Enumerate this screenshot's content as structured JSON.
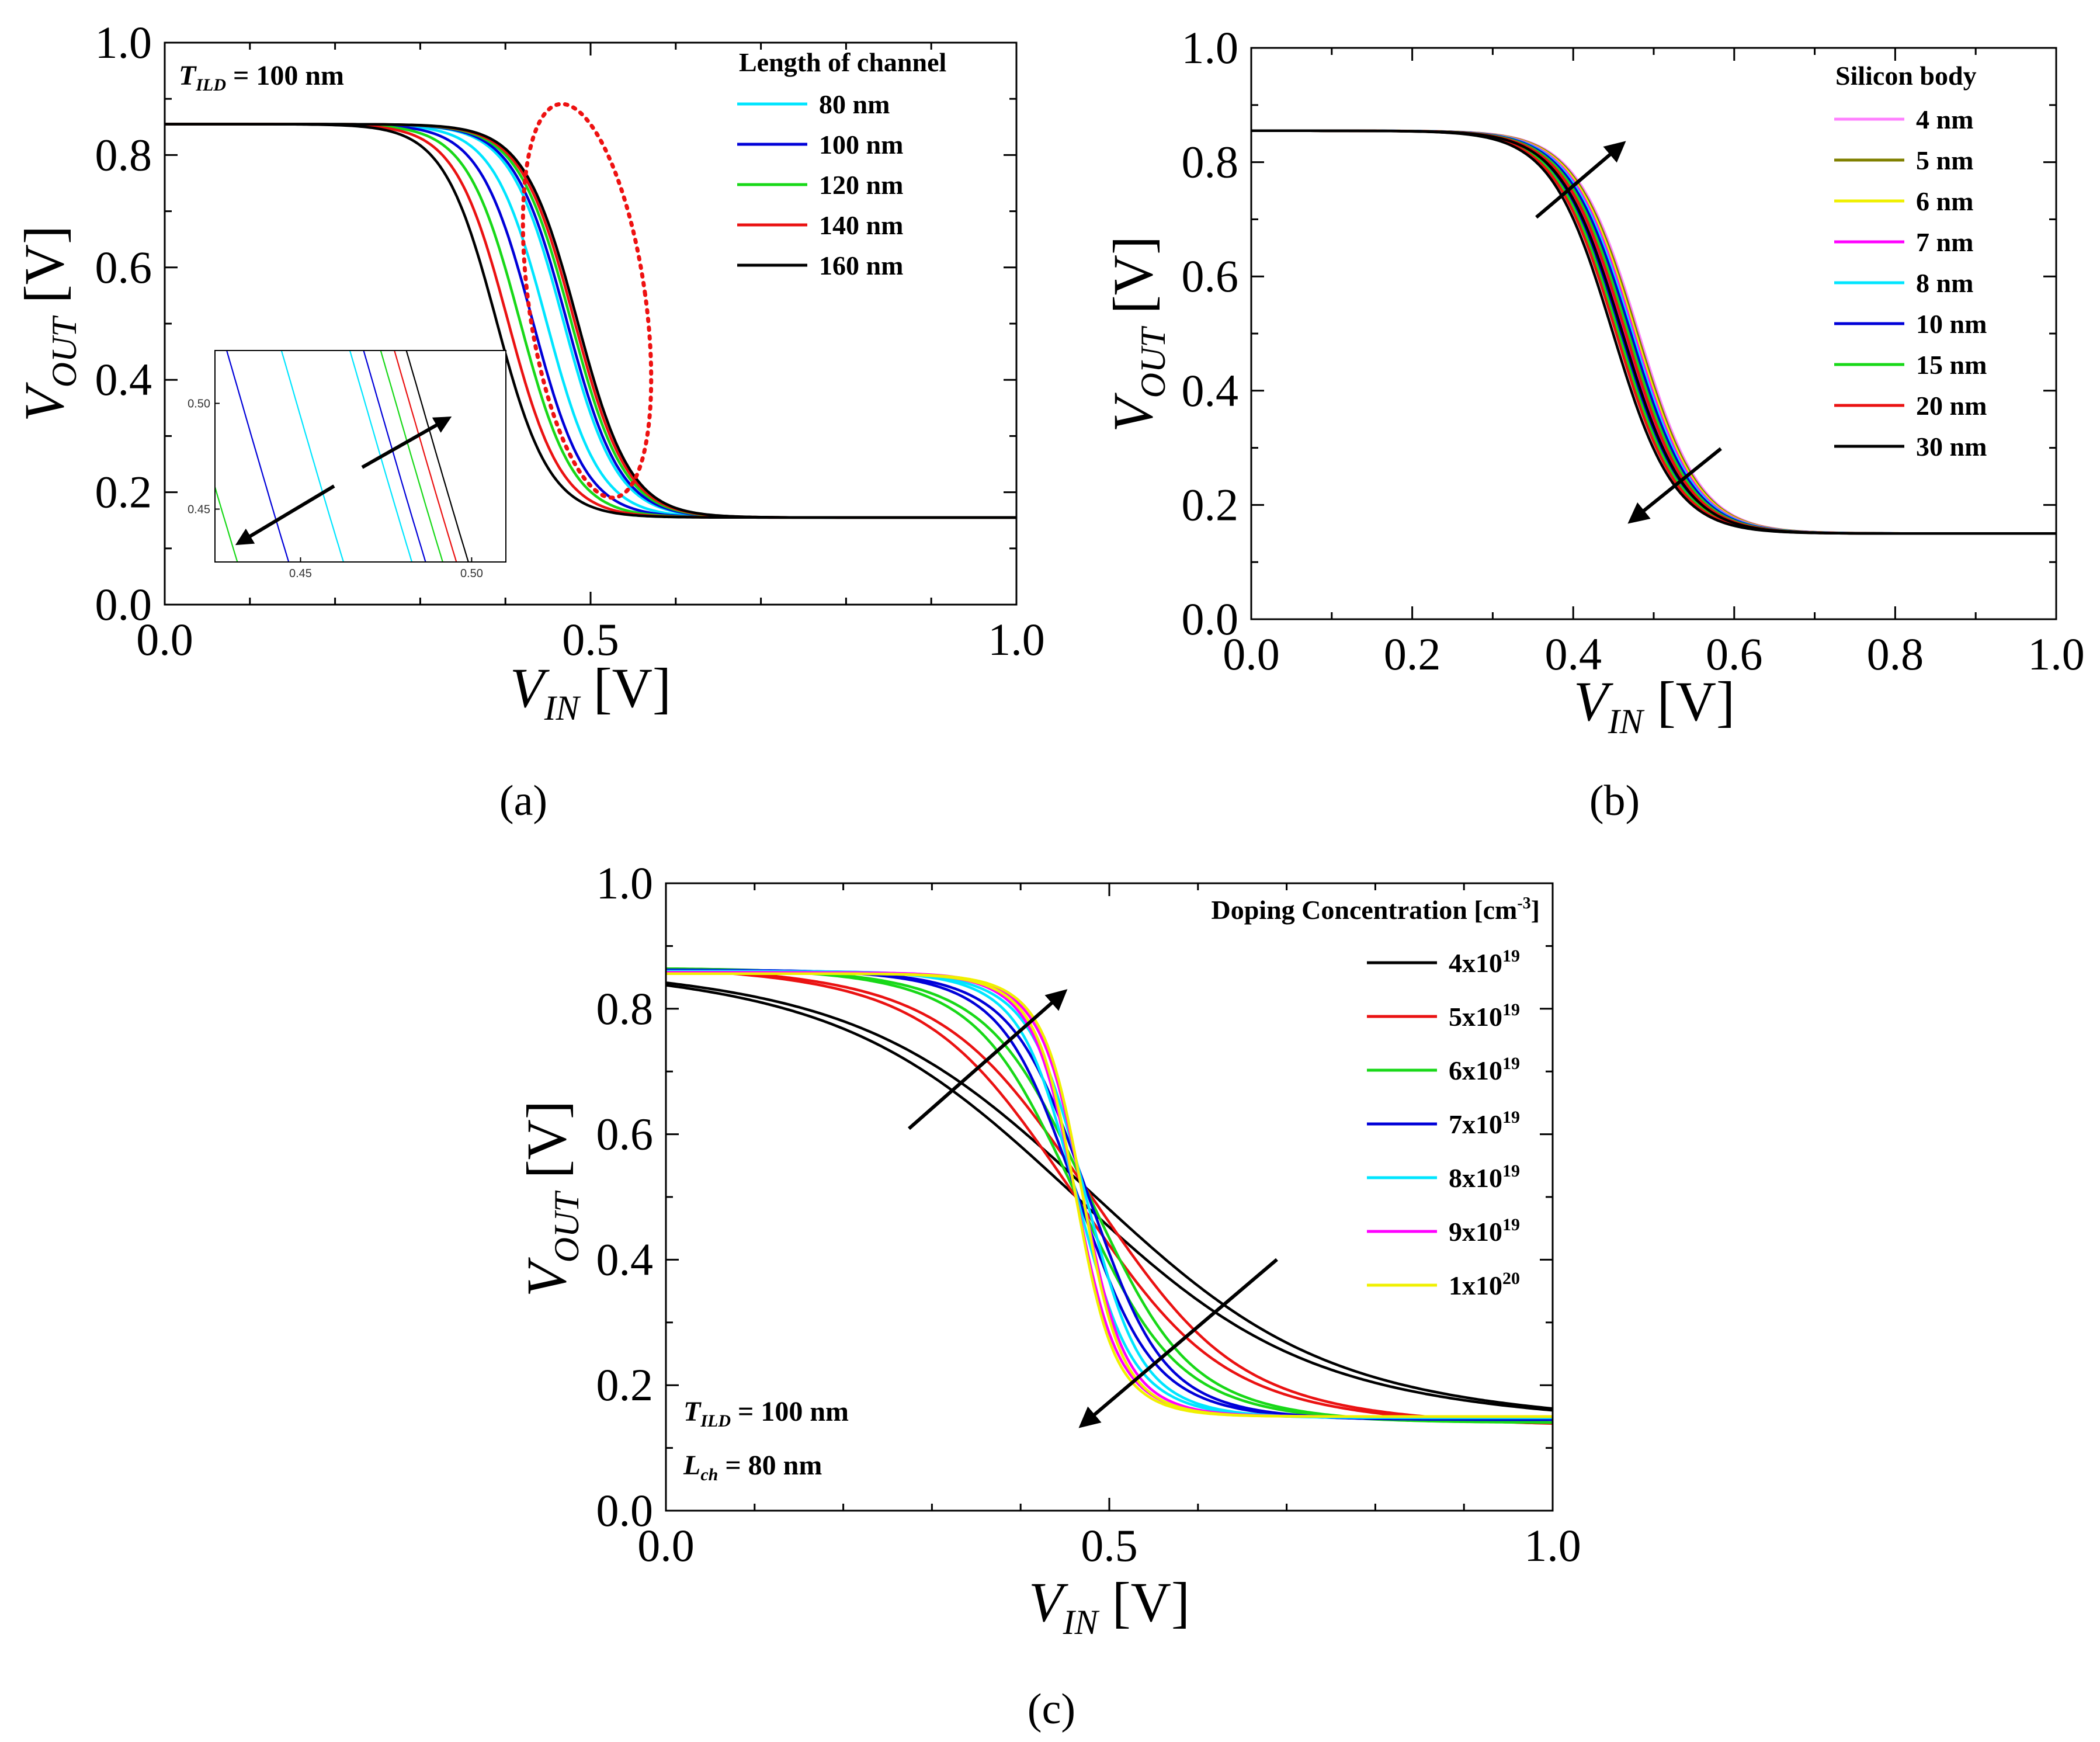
{
  "colors": {
    "cyan": "#00e5ff",
    "blue": "#0000d8",
    "green": "#18d818",
    "red": "#ea1212",
    "black": "#000000",
    "pink": "#ff80ff",
    "olive": "#808000",
    "yellow": "#f0f000",
    "magenta": "#ff00ff",
    "ellipse": "#ee1111"
  },
  "chart_data": [
    {
      "id": "a",
      "type": "line",
      "panel_label": "(a)",
      "xlabel": "V_IN [V]",
      "xlabel_main": "V",
      "xlabel_sub": "IN",
      "xlabel_unit": " [V]",
      "ylabel": "V_OUT [V]",
      "ylabel_main": "V",
      "ylabel_sub": "OUT",
      "ylabel_unit": " [V]",
      "xlim": [
        0,
        1
      ],
      "ylim": [
        0,
        1
      ],
      "xticks": [
        "0.0",
        "0.5",
        "1.0"
      ],
      "xtick_values": [
        0,
        0.5,
        1.0
      ],
      "yticks": [
        "0.0",
        "0.2",
        "0.4",
        "0.6",
        "0.8",
        "1.0"
      ],
      "ytick_values": [
        0,
        0.2,
        0.4,
        0.6,
        0.8,
        1.0
      ],
      "legend_title": "Length of channel",
      "legend_location": "top-right",
      "annotation_main": "T",
      "annotation_sub": "ILD",
      "annotation_text": " = 100 nm",
      "series": [
        {
          "name": "80 nm",
          "color": "cyan",
          "vm": 0.458,
          "k": 32,
          "hyst": 0.02,
          "vh": 0.855,
          "vl": 0.155
        },
        {
          "name": "100 nm",
          "color": "blue",
          "vm": 0.452,
          "k": 32,
          "hyst": 0.04,
          "vh": 0.855,
          "vl": 0.155
        },
        {
          "name": "120 nm",
          "color": "green",
          "vm": 0.447,
          "k": 32,
          "hyst": 0.06,
          "vh": 0.855,
          "vl": 0.155
        },
        {
          "name": "140 nm",
          "color": "red",
          "vm": 0.442,
          "k": 32,
          "hyst": 0.078,
          "vh": 0.855,
          "vl": 0.155
        },
        {
          "name": "160 nm",
          "color": "black",
          "vm": 0.437,
          "k": 32,
          "hyst": 0.095,
          "vh": 0.855,
          "vl": 0.155
        }
      ],
      "inset": {
        "xlim": [
          0.425,
          0.51
        ],
        "ylim": [
          0.425,
          0.525
        ],
        "xticks": [
          "0.45",
          "0.50"
        ],
        "xtick_values": [
          0.45,
          0.5
        ],
        "yticks": [
          "0.45",
          "0.50"
        ],
        "ytick_values": [
          0.45,
          0.5
        ]
      }
    },
    {
      "id": "b",
      "type": "line",
      "panel_label": "(b)",
      "xlabel": "V_IN [V]",
      "xlabel_main": "V",
      "xlabel_sub": "IN",
      "xlabel_unit": " [V]",
      "ylabel": "V_OUT [V]",
      "ylabel_main": "V",
      "ylabel_sub": "OUT",
      "ylabel_unit": " [V]",
      "xlim": [
        0,
        1
      ],
      "ylim": [
        0,
        1
      ],
      "xticks": [
        "0.0",
        "0.2",
        "0.4",
        "0.6",
        "0.8",
        "1.0"
      ],
      "xtick_values": [
        0,
        0.2,
        0.4,
        0.6,
        0.8,
        1.0
      ],
      "yticks": [
        "0.0",
        "0.2",
        "0.4",
        "0.6",
        "0.8",
        "1.0"
      ],
      "ytick_values": [
        0,
        0.2,
        0.4,
        0.6,
        0.8,
        1.0
      ],
      "legend_title": "Silicon body",
      "legend_location": "top-right",
      "series": [
        {
          "name": "4 nm",
          "color": "pink",
          "vm": 0.475,
          "k": 26,
          "hyst": 0.012,
          "vh": 0.855,
          "vl": 0.15
        },
        {
          "name": "5 nm",
          "color": "olive",
          "vm": 0.473,
          "k": 26,
          "hyst": 0.012,
          "vh": 0.855,
          "vl": 0.15
        },
        {
          "name": "6 nm",
          "color": "yellow",
          "vm": 0.471,
          "k": 26,
          "hyst": 0.012,
          "vh": 0.855,
          "vl": 0.15
        },
        {
          "name": "7 nm",
          "color": "magenta",
          "vm": 0.469,
          "k": 26,
          "hyst": 0.012,
          "vh": 0.855,
          "vl": 0.15
        },
        {
          "name": "8 nm",
          "color": "cyan",
          "vm": 0.467,
          "k": 26,
          "hyst": 0.012,
          "vh": 0.855,
          "vl": 0.15
        },
        {
          "name": "10 nm",
          "color": "blue",
          "vm": 0.465,
          "k": 26,
          "hyst": 0.012,
          "vh": 0.855,
          "vl": 0.15
        },
        {
          "name": "15 nm",
          "color": "green",
          "vm": 0.462,
          "k": 26,
          "hyst": 0.012,
          "vh": 0.855,
          "vl": 0.15
        },
        {
          "name": "20 nm",
          "color": "red",
          "vm": 0.459,
          "k": 26,
          "hyst": 0.012,
          "vh": 0.855,
          "vl": 0.15
        },
        {
          "name": "30 nm",
          "color": "black",
          "vm": 0.455,
          "k": 26,
          "hyst": 0.012,
          "vh": 0.855,
          "vl": 0.15
        }
      ]
    },
    {
      "id": "c",
      "type": "line",
      "panel_label": "(c)",
      "xlabel": "V_IN [V]",
      "xlabel_main": "V",
      "xlabel_sub": "IN",
      "xlabel_unit": " [V]",
      "ylabel": "V_OUT [V]",
      "ylabel_main": "V",
      "ylabel_sub": "OUT",
      "ylabel_unit": " [V]",
      "xlim": [
        0,
        1
      ],
      "ylim": [
        0,
        1
      ],
      "xticks": [
        "0.0",
        "0.5",
        "1.0"
      ],
      "xtick_values": [
        0,
        0.5,
        1.0
      ],
      "yticks": [
        "0.0",
        "0.2",
        "0.4",
        "0.6",
        "0.8",
        "1.0"
      ],
      "ytick_values": [
        0,
        0.2,
        0.4,
        0.6,
        0.8,
        1.0
      ],
      "legend_title_main": "Doping Concentration [cm",
      "legend_title_sup": "-3",
      "legend_title_end": "]",
      "legend_location": "top-right",
      "annotation1_main": "T",
      "annotation1_sub": "ILD",
      "annotation1_text": " = 100 nm",
      "annotation2_main": "L",
      "annotation2_sub": "ch",
      "annotation2_text": " = 80 nm",
      "series": [
        {
          "name": "4x10^19",
          "label_base": "4x10",
          "label_exp": "19",
          "color": "black",
          "vm": 0.47,
          "k": 4.8,
          "plateau": 0.08,
          "hyst": 0.022,
          "vh": 0.875,
          "vl": 0.135
        },
        {
          "name": "5x10^19",
          "label_base": "5x10",
          "label_exp": "19",
          "color": "red",
          "vm": 0.47,
          "k": 8.2,
          "plateau": 0.06,
          "hyst": 0.018,
          "vh": 0.87,
          "vl": 0.135
        },
        {
          "name": "6x10^19",
          "label_base": "6x10",
          "label_exp": "19",
          "color": "green",
          "vm": 0.47,
          "k": 12,
          "plateau": 0.04,
          "hyst": 0.014,
          "vh": 0.865,
          "vl": 0.14
        },
        {
          "name": "7x10^19",
          "label_base": "7x10",
          "label_exp": "19",
          "color": "blue",
          "vm": 0.47,
          "k": 16,
          "plateau": 0.03,
          "hyst": 0.012,
          "vh": 0.862,
          "vl": 0.145
        },
        {
          "name": "8x10^19",
          "label_base": "8x10",
          "label_exp": "19",
          "color": "cyan",
          "vm": 0.468,
          "k": 21,
          "plateau": 0.02,
          "hyst": 0.01,
          "vh": 0.86,
          "vl": 0.148
        },
        {
          "name": "9x10^19",
          "label_base": "9x10",
          "label_exp": "19",
          "color": "magenta",
          "vm": 0.466,
          "k": 26,
          "plateau": 0.012,
          "hyst": 0.008,
          "vh": 0.858,
          "vl": 0.15
        },
        {
          "name": "1x10^20",
          "label_base": "1x10",
          "label_exp": "20",
          "color": "yellow",
          "vm": 0.466,
          "k": 28,
          "plateau": 0.01,
          "hyst": 0.008,
          "vh": 0.856,
          "vl": 0.15
        }
      ]
    }
  ]
}
